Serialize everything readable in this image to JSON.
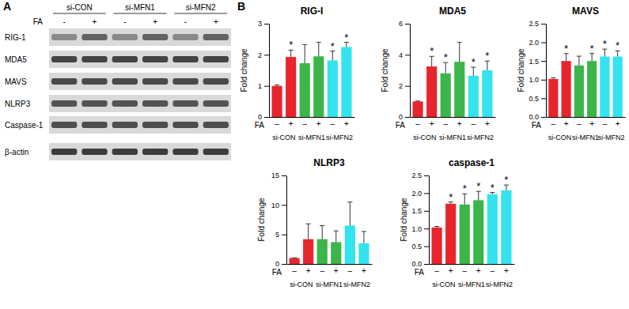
{
  "panel_labels": [
    "A",
    "B"
  ],
  "blot": {
    "groups": [
      "si-CON",
      "si-MFN1",
      "si-MFN2"
    ],
    "treatment_label": "FA",
    "lanes": [
      "-",
      "+",
      "-",
      "+",
      "-",
      "+"
    ],
    "rows": [
      "RIG-1",
      "MDA5",
      "MAVS",
      "NLRP3",
      "Caspase-1",
      "β-actin"
    ]
  },
  "chart_data": [
    {
      "type": "bar",
      "title": "RIG-I",
      "ylabel": "Fold change",
      "xlabel": "FA",
      "categories": [
        "–",
        "+",
        "–",
        "+",
        "–",
        "+"
      ],
      "groups": [
        "si-CON",
        "si-MFN1",
        "si-MFN2"
      ],
      "values": [
        1.0,
        1.93,
        1.73,
        1.95,
        1.82,
        2.25
      ],
      "errors": [
        0.03,
        0.22,
        0.6,
        0.45,
        0.3,
        0.15
      ],
      "colors": [
        "#e8252d",
        "#e8252d",
        "#3cb54a",
        "#3cb54a",
        "#33e3ee",
        "#33e3ee"
      ],
      "ylim": [
        0,
        3
      ],
      "yticks": [
        0,
        1,
        2,
        3
      ],
      "annotations": [
        {
          "index": 1,
          "text": "*"
        },
        {
          "index": 4,
          "text": "*"
        },
        {
          "index": 5,
          "text": "*"
        }
      ]
    },
    {
      "type": "bar",
      "title": "MDA5",
      "ylabel": "Fold change",
      "xlabel": "FA",
      "categories": [
        "–",
        "+",
        "–",
        "+",
        "–",
        "+"
      ],
      "groups": [
        "si-CON",
        "si-MFN1",
        "si-MFN2"
      ],
      "values": [
        1.0,
        3.25,
        2.8,
        3.55,
        2.65,
        3.0
      ],
      "errors": [
        0.03,
        0.65,
        0.7,
        1.25,
        0.55,
        0.6
      ],
      "colors": [
        "#e8252d",
        "#e8252d",
        "#3cb54a",
        "#3cb54a",
        "#33e3ee",
        "#33e3ee"
      ],
      "ylim": [
        0,
        6
      ],
      "yticks": [
        0,
        2,
        4,
        6
      ],
      "annotations": [
        {
          "index": 1,
          "text": "*"
        },
        {
          "index": 2,
          "text": "*"
        },
        {
          "index": 4,
          "text": "*"
        },
        {
          "index": 5,
          "text": "*"
        }
      ]
    },
    {
      "type": "bar",
      "title": "MAVS",
      "ylabel": "Fold change",
      "xlabel": "FA",
      "categories": [
        "–",
        "+",
        "–",
        "+",
        "–",
        "+"
      ],
      "groups": [
        "si-CON",
        "si-MFN1",
        "si-MFN2"
      ],
      "values": [
        1.02,
        1.5,
        1.38,
        1.5,
        1.62,
        1.62
      ],
      "errors": [
        0.03,
        0.2,
        0.25,
        0.2,
        0.2,
        0.15
      ],
      "colors": [
        "#e8252d",
        "#e8252d",
        "#3cb54a",
        "#3cb54a",
        "#33e3ee",
        "#33e3ee"
      ],
      "ylim": [
        0,
        2.5
      ],
      "yticks": [
        {
          "value": 0,
          "label": "0.0"
        },
        {
          "value": 0.5,
          "label": "0.5"
        },
        {
          "value": 1,
          "label": "1.0"
        },
        {
          "value": 1.5,
          "label": "1.5"
        },
        {
          "value": 2,
          "label": "2.0"
        },
        {
          "value": 2.5,
          "label": "2.5"
        }
      ],
      "annotations": [
        {
          "index": 1,
          "text": "*"
        },
        {
          "index": 3,
          "text": "*"
        },
        {
          "index": 4,
          "text": "*"
        },
        {
          "index": 5,
          "text": "*"
        }
      ]
    },
    {
      "type": "bar",
      "title": "NLRP3",
      "ylabel": "Fold change",
      "xlabel": "FA",
      "categories": [
        "–",
        "+",
        "–",
        "+",
        "–",
        "+"
      ],
      "groups": [
        "si-CON",
        "si-MFN1",
        "si-MFN2"
      ],
      "values": [
        1.0,
        4.2,
        4.2,
        3.7,
        6.5,
        3.5
      ],
      "errors": [
        0.05,
        2.6,
        2.3,
        1.9,
        4.0,
        2.0
      ],
      "colors": [
        "#e8252d",
        "#e8252d",
        "#3cb54a",
        "#3cb54a",
        "#33e3ee",
        "#33e3ee"
      ],
      "ylim": [
        0,
        15
      ],
      "yticks": [
        0,
        5,
        10,
        15
      ]
    },
    {
      "type": "bar",
      "title": "caspase-1",
      "ylabel": "Fold change",
      "xlabel": "FA",
      "categories": [
        "–",
        "+",
        "–",
        "+",
        "–",
        "+"
      ],
      "groups": [
        "si-CON",
        "si-MFN1",
        "si-MFN2"
      ],
      "values": [
        1.03,
        1.7,
        1.68,
        1.8,
        1.97,
        2.08
      ],
      "errors": [
        0.03,
        0.05,
        0.3,
        0.25,
        0.05,
        0.15
      ],
      "colors": [
        "#e8252d",
        "#e8252d",
        "#3cb54a",
        "#3cb54a",
        "#33e3ee",
        "#33e3ee"
      ],
      "ylim": [
        0,
        2.5
      ],
      "yticks": [
        {
          "value": 0,
          "label": "0.0"
        },
        {
          "value": 0.5,
          "label": "0.5"
        },
        {
          "value": 1,
          "label": "1.0"
        },
        {
          "value": 1.5,
          "label": "1.5"
        },
        {
          "value": 2,
          "label": "2.0"
        },
        {
          "value": 2.5,
          "label": "2.5"
        }
      ],
      "annotations": [
        {
          "index": 1,
          "text": "*"
        },
        {
          "index": 2,
          "text": "*"
        },
        {
          "index": 3,
          "text": "*"
        },
        {
          "index": 4,
          "text": "*"
        },
        {
          "index": 5,
          "text": "*"
        }
      ]
    }
  ]
}
